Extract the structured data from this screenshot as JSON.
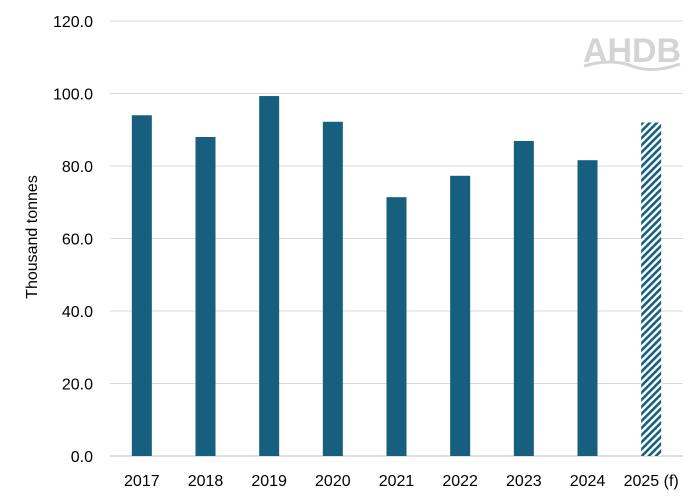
{
  "chart_data": {
    "type": "bar",
    "categories": [
      "2017",
      "2018",
      "2019",
      "2020",
      "2021",
      "2022",
      "2023",
      "2024",
      "2025 (f)"
    ],
    "values": [
      94.0,
      88.0,
      99.3,
      92.2,
      71.4,
      77.3,
      86.9,
      81.6,
      92.0
    ],
    "forecast_categories": [
      "2025 (f)"
    ],
    "title": "",
    "xlabel": "",
    "ylabel": "Thousand tonnes",
    "ylim": [
      0,
      120
    ],
    "yticks": [
      "0.0",
      "20.0",
      "40.0",
      "60.0",
      "80.0",
      "100.0",
      "120.0"
    ],
    "grid": true,
    "bar_color": "#175f7e",
    "forecast_pattern": "diagonal-hatch"
  },
  "logo": {
    "text": "AHDB",
    "color": "#d4d4d4"
  }
}
